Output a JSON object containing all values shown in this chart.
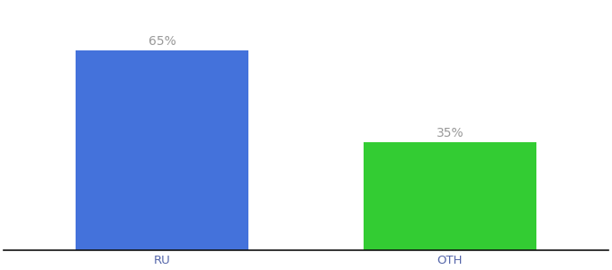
{
  "categories": [
    "RU",
    "OTH"
  ],
  "values": [
    65,
    35
  ],
  "bar_colors": [
    "#4472db",
    "#33cc33"
  ],
  "label_texts": [
    "65%",
    "35%"
  ],
  "ylim": [
    0,
    80
  ],
  "background_color": "#ffffff",
  "label_color": "#999999",
  "bar_width": 0.6,
  "label_fontsize": 10,
  "tick_fontsize": 9.5,
  "tick_color": "#5566aa"
}
